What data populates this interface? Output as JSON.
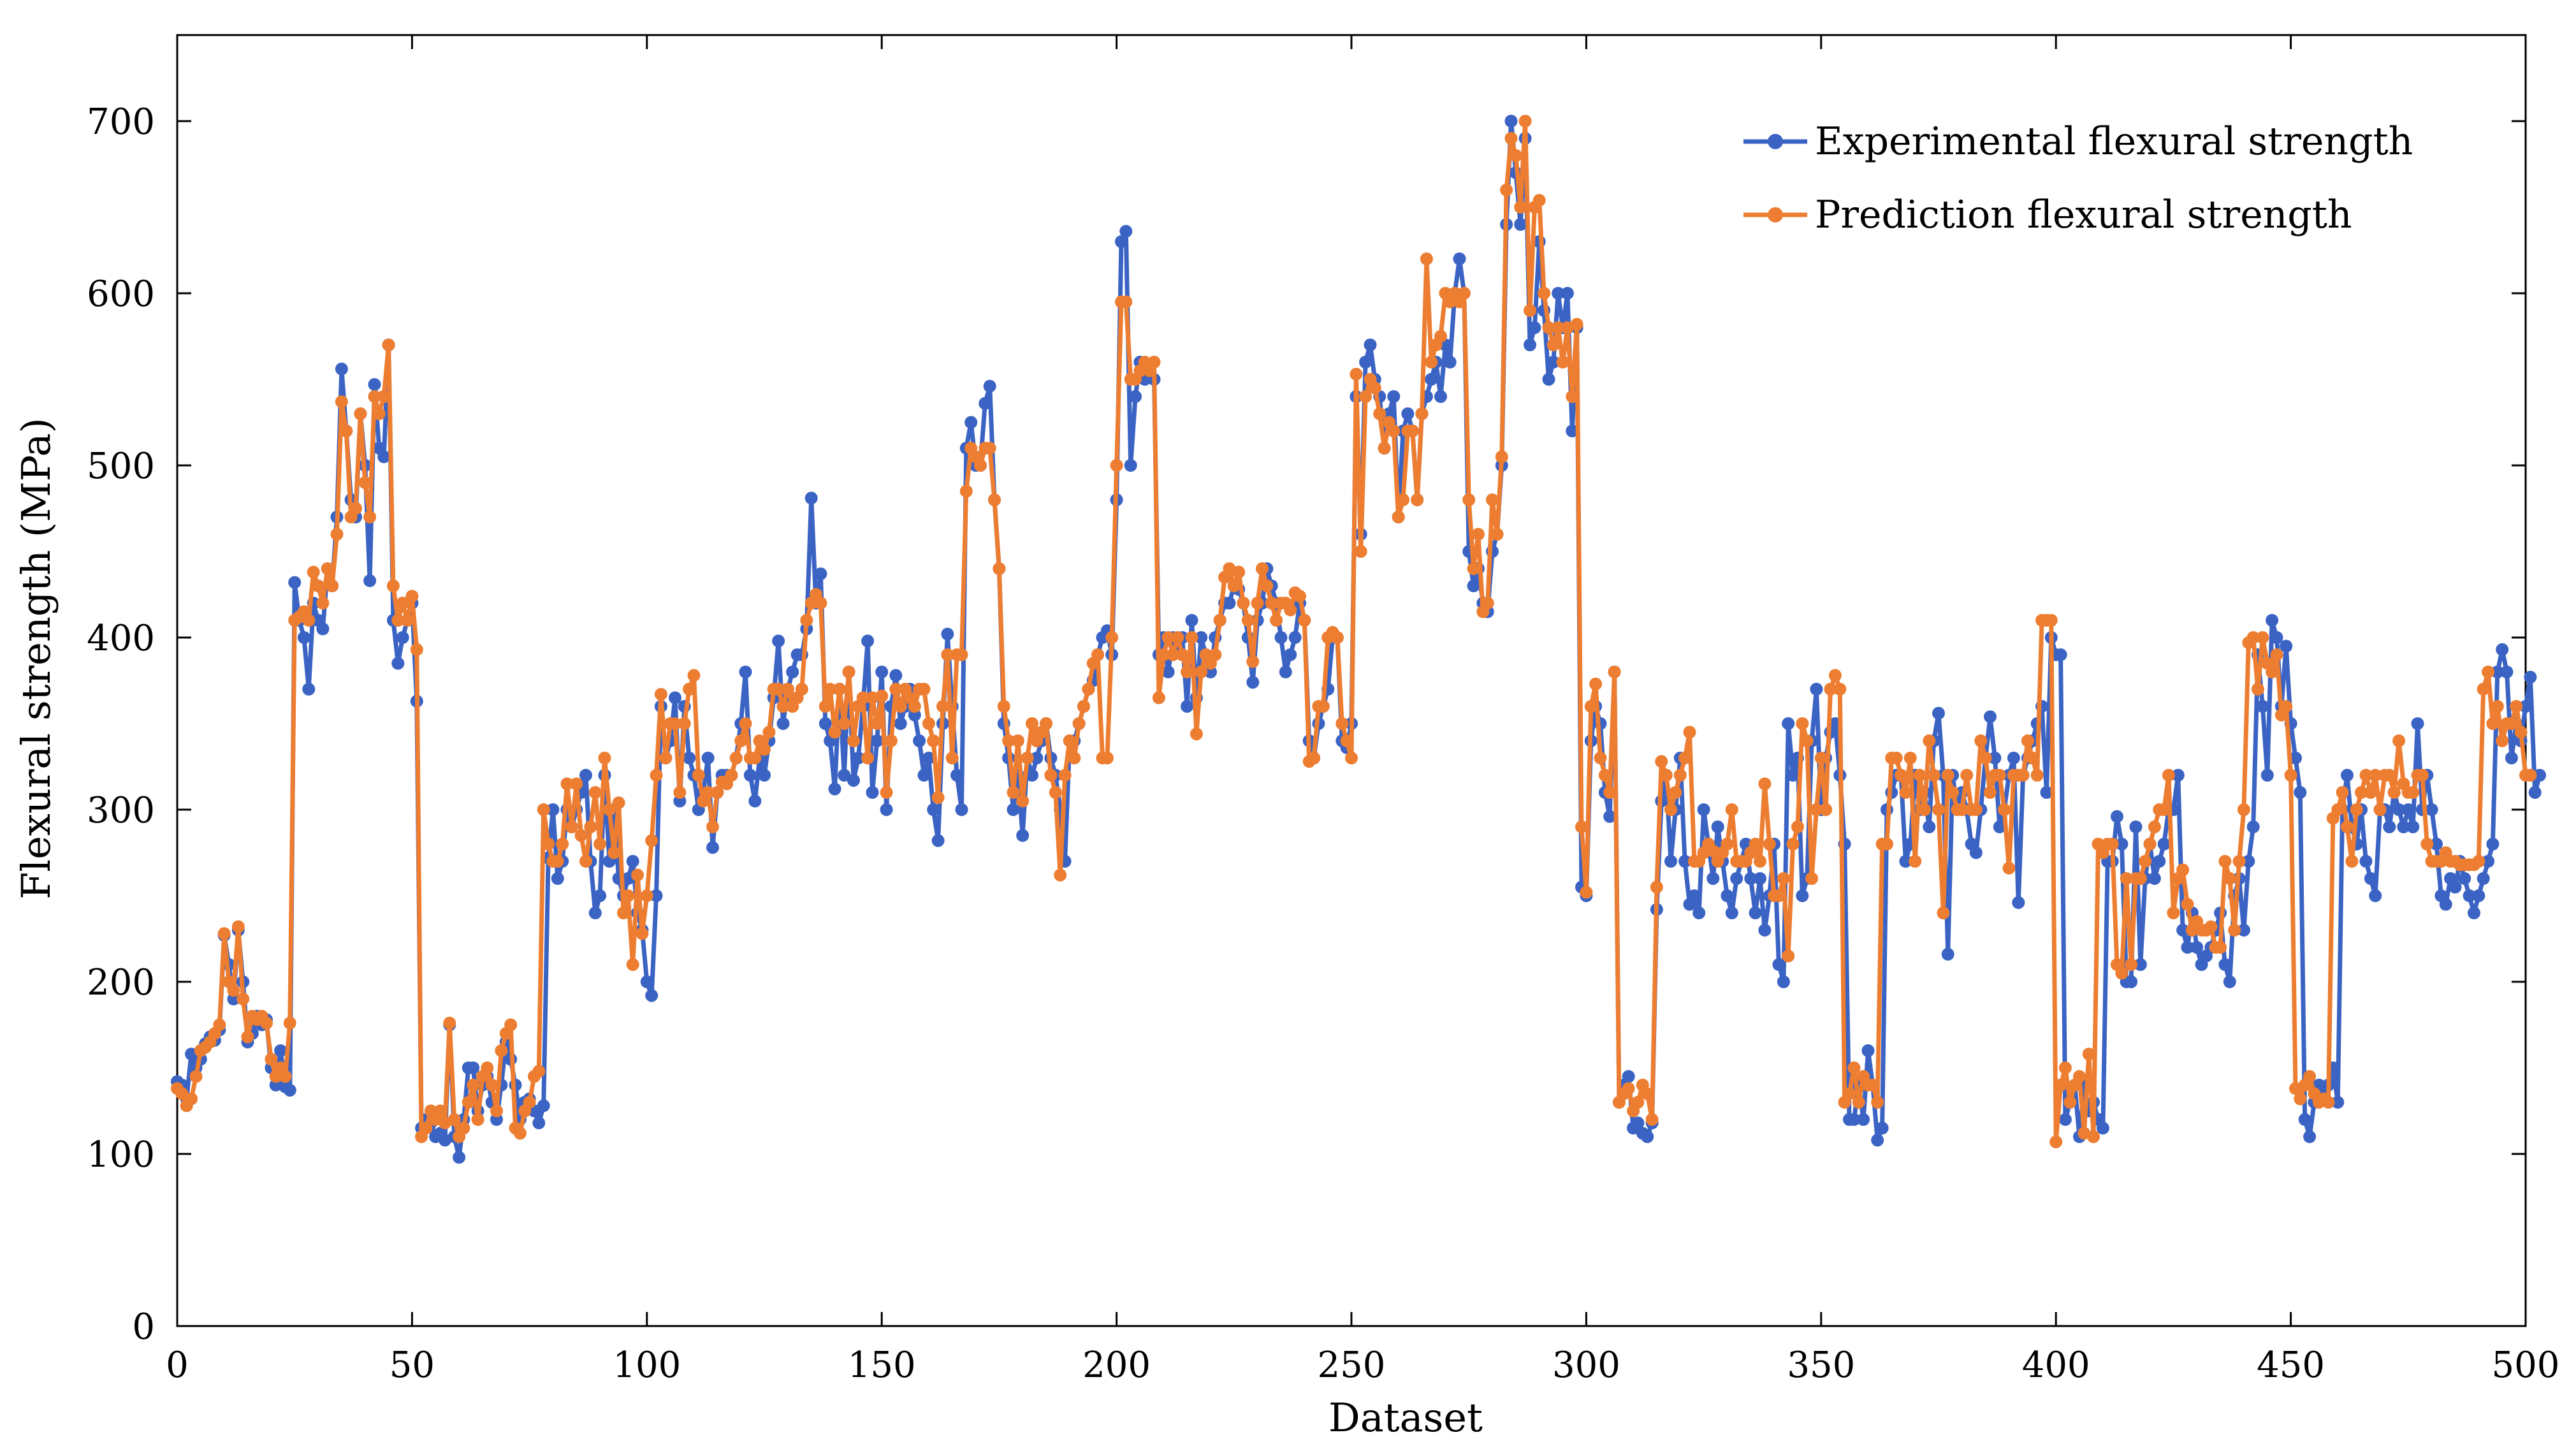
{
  "chart_data": {
    "type": "line",
    "title": "",
    "xlabel": "Dataset",
    "ylabel": "Flexural strength (MPa)",
    "xlim": [
      0,
      500
    ],
    "ylim": [
      0,
      750
    ],
    "x_ticks": [
      0,
      50,
      100,
      150,
      200,
      250,
      300,
      350,
      400,
      450,
      500
    ],
    "y_ticks": [
      0,
      100,
      200,
      300,
      400,
      500,
      600,
      700
    ],
    "grid": false,
    "legend_position": "top-right",
    "series": [
      {
        "name": "Experimental flexural strength",
        "color": "#3A63C4",
        "marker": "circle",
        "values": [
          142,
          140,
          132,
          158,
          150,
          155,
          164,
          168,
          166,
          172,
          227,
          210,
          190,
          230,
          200,
          165,
          170,
          180,
          175,
          178,
          150,
          140,
          160,
          139,
          137,
          432,
          410,
          400,
          370,
          420,
          410,
          405,
          440,
          430,
          470,
          556,
          520,
          480,
          470,
          530,
          500,
          433,
          547,
          510,
          505,
          570,
          410,
          385,
          400,
          410,
          420,
          363,
          115,
          120,
          118,
          110,
          112,
          108,
          175,
          110,
          98,
          120,
          150,
          150,
          125,
          140,
          145,
          130,
          120,
          140,
          165,
          155,
          140,
          120,
          130,
          132,
          125,
          118,
          128,
          272,
          300,
          260,
          270,
          300,
          290,
          300,
          310,
          320,
          270,
          240,
          250,
          320,
          270,
          300,
          260,
          250,
          260,
          270,
          240,
          230,
          200,
          192,
          250,
          360,
          330,
          340,
          365,
          305,
          360,
          330,
          320,
          300,
          310,
          330,
          278,
          310,
          320,
          320,
          320,
          330,
          350,
          380,
          320,
          305,
          330,
          320,
          340,
          365,
          398,
          350,
          370,
          380,
          390,
          390,
          405,
          481,
          420,
          437,
          350,
          340,
          312,
          370,
          320,
          380,
          317,
          330,
          360,
          398,
          310,
          340,
          380,
          300,
          360,
          378,
          350,
          360,
          370,
          355,
          340,
          320,
          330,
          300,
          282,
          350,
          402,
          360,
          320,
          300,
          510,
          525,
          500,
          500,
          536,
          546,
          480,
          440,
          350,
          330,
          300,
          320,
          285,
          330,
          320,
          330,
          340,
          350,
          330,
          320,
          300,
          270,
          340,
          340,
          350,
          360,
          370,
          375,
          390,
          400,
          404,
          390,
          480,
          630,
          636,
          500,
          540,
          560,
          550,
          555,
          550,
          390,
          400,
          380,
          400,
          395,
          400,
          360,
          410,
          365,
          400,
          390,
          380,
          400,
          410,
          420,
          420,
          430,
          428,
          420,
          400,
          374,
          410,
          420,
          440,
          430,
          420,
          400,
          380,
          390,
          400,
          420,
          410,
          340,
          330,
          350,
          360,
          370,
          400,
          400,
          340,
          336,
          350,
          540,
          460,
          560,
          570,
          550,
          540,
          510,
          530,
          540,
          470,
          520,
          530,
          520,
          480,
          530,
          540,
          550,
          560,
          540,
          570,
          560,
          600,
          620,
          600,
          450,
          430,
          440,
          420,
          415,
          450,
          460,
          500,
          640,
          700,
          670,
          640,
          690,
          570,
          580,
          630,
          590,
          550,
          560,
          600,
          580,
          600,
          520,
          580,
          255,
          250,
          340,
          360,
          350,
          310,
          296,
          380,
          130,
          140,
          145,
          115,
          118,
          112,
          110,
          118,
          242,
          305,
          320,
          270,
          300,
          330,
          270,
          245,
          250,
          240,
          300,
          280,
          260,
          290,
          270,
          250,
          240,
          260,
          270,
          280,
          260,
          240,
          260,
          230,
          250,
          280,
          210,
          200,
          350,
          320,
          330,
          250,
          260,
          340,
          370,
          300,
          330,
          345,
          350,
          320,
          280,
          120,
          120,
          140,
          120,
          160,
          140,
          108,
          115,
          300,
          310,
          320,
          320,
          270,
          280,
          320,
          300,
          310,
          290,
          340,
          356,
          320,
          216,
          320,
          300,
          310,
          300,
          280,
          275,
          300,
          330,
          354,
          330,
          290,
          300,
          320,
          330,
          246,
          320,
          330,
          340,
          350,
          360,
          310,
          400,
          390,
          390,
          120,
          130,
          140,
          110,
          140,
          125,
          130,
          120,
          115,
          270,
          270,
          296,
          280,
          200,
          200,
          290,
          210,
          260,
          280,
          260,
          270,
          280,
          300,
          300,
          320,
          230,
          220,
          240,
          220,
          210,
          215,
          220,
          230,
          240,
          210,
          200,
          250,
          260,
          230,
          270,
          290,
          390,
          360,
          320,
          410,
          400,
          360,
          395,
          350,
          330,
          310,
          120,
          110,
          130,
          140,
          135,
          140,
          150,
          130,
          300,
          320,
          290,
          280,
          300,
          270,
          260,
          250,
          300,
          300,
          290,
          310,
          300,
          290,
          300,
          290,
          350,
          300,
          320,
          300,
          280,
          250,
          245,
          260,
          255,
          270,
          260,
          250,
          240,
          250,
          260,
          270,
          280,
          380,
          393,
          380,
          330,
          350,
          340,
          360,
          377,
          310,
          320
        ]
      },
      {
        "name": "Prediction flexural strength",
        "color": "#ED7D31",
        "marker": "circle",
        "values": [
          138,
          135,
          128,
          132,
          145,
          160,
          162,
          165,
          170,
          175,
          228,
          200,
          195,
          232,
          190,
          168,
          180,
          178,
          180,
          176,
          155,
          145,
          150,
          145,
          176,
          410,
          412,
          415,
          410,
          438,
          430,
          420,
          440,
          430,
          460,
          537,
          520,
          470,
          475,
          530,
          490,
          470,
          540,
          530,
          540,
          570,
          430,
          410,
          420,
          410,
          424,
          393,
          110,
          115,
          125,
          120,
          125,
          118,
          176,
          120,
          110,
          115,
          130,
          140,
          120,
          145,
          150,
          140,
          125,
          160,
          170,
          175,
          115,
          112,
          125,
          130,
          145,
          148,
          300,
          280,
          270,
          270,
          280,
          315,
          290,
          315,
          285,
          270,
          290,
          310,
          280,
          330,
          300,
          275,
          304,
          240,
          250,
          210,
          262,
          228,
          250,
          282,
          320,
          367,
          330,
          350,
          350,
          310,
          350,
          370,
          378,
          320,
          305,
          310,
          290,
          310,
          316,
          315,
          320,
          330,
          340,
          350,
          330,
          330,
          340,
          335,
          345,
          370,
          370,
          360,
          370,
          360,
          365,
          370,
          410,
          420,
          425,
          420,
          360,
          370,
          345,
          370,
          350,
          380,
          340,
          360,
          365,
          330,
          365,
          350,
          366,
          310,
          340,
          370,
          360,
          370,
          365,
          360,
          370,
          370,
          350,
          340,
          307,
          360,
          390,
          330,
          390,
          390,
          485,
          510,
          505,
          500,
          510,
          510,
          480,
          440,
          360,
          340,
          310,
          340,
          305,
          330,
          350,
          340,
          345,
          350,
          320,
          310,
          262,
          320,
          340,
          330,
          350,
          360,
          370,
          385,
          390,
          330,
          330,
          400,
          500,
          595,
          595,
          550,
          550,
          555,
          560,
          555,
          560,
          365,
          390,
          400,
          390,
          400,
          390,
          380,
          400,
          344,
          380,
          390,
          385,
          390,
          410,
          435,
          440,
          430,
          438,
          420,
          410,
          386,
          420,
          440,
          430,
          420,
          410,
          420,
          420,
          416,
          426,
          424,
          410,
          328,
          330,
          360,
          360,
          400,
          403,
          400,
          350,
          340,
          330,
          553,
          450,
          540,
          550,
          545,
          530,
          510,
          525,
          520,
          470,
          480,
          520,
          520,
          480,
          530,
          620,
          560,
          570,
          575,
          600,
          595,
          600,
          595,
          600,
          480,
          440,
          460,
          415,
          420,
          480,
          460,
          505,
          660,
          690,
          680,
          650,
          700,
          590,
          650,
          654,
          600,
          580,
          570,
          580,
          560,
          580,
          540,
          582,
          290,
          252,
          360,
          373,
          330,
          320,
          310,
          380,
          130,
          135,
          138,
          125,
          130,
          140,
          135,
          120,
          255,
          328,
          320,
          300,
          310,
          320,
          330,
          345,
          270,
          270,
          275,
          280,
          276,
          270,
          275,
          280,
          300,
          270,
          270,
          270,
          275,
          280,
          270,
          315,
          280,
          250,
          250,
          260,
          215,
          280,
          290,
          350,
          340,
          260,
          300,
          330,
          300,
          370,
          378,
          370,
          130,
          135,
          150,
          130,
          145,
          140,
          140,
          130,
          280,
          280,
          330,
          330,
          320,
          310,
          330,
          270,
          320,
          300,
          340,
          320,
          300,
          240,
          320,
          310,
          300,
          300,
          320,
          300,
          300,
          340,
          330,
          310,
          320,
          320,
          300,
          266,
          320,
          320,
          320,
          340,
          330,
          320,
          410,
          410,
          410,
          107,
          140,
          150,
          130,
          140,
          145,
          112,
          158,
          110,
          280,
          275,
          280,
          280,
          210,
          205,
          260,
          210,
          260,
          260,
          270,
          280,
          290,
          300,
          300,
          320,
          240,
          260,
          265,
          245,
          230,
          235,
          230,
          230,
          232,
          220,
          220,
          270,
          260,
          230,
          270,
          300,
          397,
          400,
          370,
          400,
          385,
          380,
          390,
          355,
          360,
          320,
          138,
          132,
          140,
          145,
          135,
          130,
          132,
          130,
          295,
          300,
          310,
          290,
          270,
          300,
          310,
          320,
          310,
          320,
          300,
          320,
          320,
          310,
          340,
          315,
          310,
          310,
          320,
          320,
          280,
          270,
          270,
          270,
          275,
          270,
          270,
          268,
          268,
          268,
          268,
          270,
          370,
          380,
          350,
          360,
          340,
          350,
          350,
          360,
          345,
          320,
          320
        ]
      }
    ]
  }
}
